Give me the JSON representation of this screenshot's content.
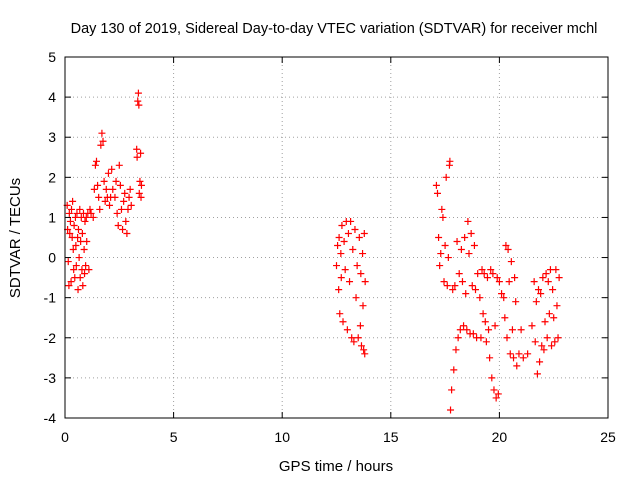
{
  "chart_data": {
    "type": "scatter",
    "title": "Day 130 of 2019, Sidereal Day-to-day VTEC variation (SDTVAR) for receiver mchl",
    "xlabel": "GPS time / hours",
    "ylabel": "SDTVAR / TECUs",
    "xlim": [
      0,
      25
    ],
    "ylim": [
      -4,
      5
    ],
    "xticks": [
      "0",
      "5",
      "10",
      "15",
      "20",
      "25"
    ],
    "yticks": [
      "-4",
      "-3",
      "-2",
      "-1",
      "0",
      "1",
      "2",
      "3",
      "4",
      "5"
    ],
    "grid": true,
    "marker": "+",
    "series": [
      {
        "name": "SDTVAR",
        "color": "#ff0000",
        "points": [
          [
            0.1,
            1.3
          ],
          [
            0.12,
            0.7
          ],
          [
            0.15,
            -0.1
          ],
          [
            0.18,
            -0.7
          ],
          [
            0.2,
            1.1
          ],
          [
            0.22,
            0.6
          ],
          [
            0.25,
            0.9
          ],
          [
            0.28,
            -0.6
          ],
          [
            0.3,
            1.2
          ],
          [
            0.33,
            0.5
          ],
          [
            0.35,
            1.4
          ],
          [
            0.38,
            0.2
          ],
          [
            0.4,
            -0.3
          ],
          [
            0.42,
            0.8
          ],
          [
            0.45,
            -0.5
          ],
          [
            0.48,
            1.0
          ],
          [
            0.5,
            0.3
          ],
          [
            0.52,
            -0.2
          ],
          [
            0.55,
            1.1
          ],
          [
            0.58,
            0.5
          ],
          [
            0.6,
            -0.8
          ],
          [
            0.62,
            0.7
          ],
          [
            0.65,
            0.0
          ],
          [
            0.68,
            1.2
          ],
          [
            0.7,
            -0.5
          ],
          [
            0.72,
            0.4
          ],
          [
            0.75,
            1.0
          ],
          [
            0.78,
            -0.3
          ],
          [
            0.8,
            0.6
          ],
          [
            0.82,
            -0.7
          ],
          [
            0.85,
            1.1
          ],
          [
            0.88,
            0.2
          ],
          [
            0.9,
            -0.4
          ],
          [
            0.92,
            0.9
          ],
          [
            0.95,
            -0.2
          ],
          [
            0.98,
            1.0
          ],
          [
            1.0,
            0.4
          ],
          [
            1.05,
            1.1
          ],
          [
            1.1,
            -0.3
          ],
          [
            1.15,
            1.2
          ],
          [
            1.2,
            1.1
          ],
          [
            1.3,
            1.0
          ],
          [
            1.35,
            1.7
          ],
          [
            1.4,
            2.3
          ],
          [
            1.45,
            2.4
          ],
          [
            1.5,
            1.8
          ],
          [
            1.55,
            1.5
          ],
          [
            1.6,
            1.2
          ],
          [
            1.65,
            2.8
          ],
          [
            1.7,
            3.1
          ],
          [
            1.75,
            2.9
          ],
          [
            1.8,
            1.9
          ],
          [
            1.85,
            1.4
          ],
          [
            1.9,
            1.7
          ],
          [
            1.95,
            1.5
          ],
          [
            2.0,
            2.1
          ],
          [
            2.05,
            1.3
          ],
          [
            2.1,
            1.5
          ],
          [
            2.15,
            2.2
          ],
          [
            2.2,
            1.7
          ],
          [
            2.3,
            1.5
          ],
          [
            2.35,
            1.9
          ],
          [
            2.4,
            1.1
          ],
          [
            2.45,
            0.8
          ],
          [
            2.5,
            2.3
          ],
          [
            2.55,
            1.8
          ],
          [
            2.6,
            1.2
          ],
          [
            2.65,
            0.7
          ],
          [
            2.7,
            1.4
          ],
          [
            2.75,
            1.6
          ],
          [
            2.8,
            0.9
          ],
          [
            2.85,
            0.6
          ],
          [
            2.9,
            1.2
          ],
          [
            2.95,
            1.5
          ],
          [
            3.0,
            1.7
          ],
          [
            3.05,
            1.3
          ],
          [
            3.3,
            2.7
          ],
          [
            3.32,
            2.5
          ],
          [
            3.35,
            3.9
          ],
          [
            3.38,
            4.1
          ],
          [
            3.4,
            3.8
          ],
          [
            3.42,
            1.6
          ],
          [
            3.45,
            1.9
          ],
          [
            3.48,
            2.6
          ],
          [
            3.5,
            1.5
          ],
          [
            3.52,
            1.8
          ],
          [
            12.5,
            -0.2
          ],
          [
            12.55,
            0.3
          ],
          [
            12.6,
            -0.8
          ],
          [
            12.62,
            0.5
          ],
          [
            12.65,
            -1.4
          ],
          [
            12.7,
            0.1
          ],
          [
            12.72,
            -0.5
          ],
          [
            12.75,
            0.8
          ],
          [
            12.8,
            -1.6
          ],
          [
            12.85,
            0.4
          ],
          [
            12.9,
            -0.3
          ],
          [
            12.95,
            0.9
          ],
          [
            13.0,
            -1.8
          ],
          [
            13.05,
            0.6
          ],
          [
            13.1,
            -0.6
          ],
          [
            13.15,
            0.9
          ],
          [
            13.2,
            -2.0
          ],
          [
            13.25,
            0.2
          ],
          [
            13.3,
            -2.1
          ],
          [
            13.35,
            0.7
          ],
          [
            13.4,
            -1.0
          ],
          [
            13.45,
            -0.2
          ],
          [
            13.5,
            -2.0
          ],
          [
            13.55,
            0.5
          ],
          [
            13.6,
            -1.7
          ],
          [
            13.62,
            -0.4
          ],
          [
            13.65,
            -2.2
          ],
          [
            13.7,
            0.1
          ],
          [
            13.72,
            -1.2
          ],
          [
            13.75,
            -2.3
          ],
          [
            13.78,
            0.6
          ],
          [
            13.8,
            -2.4
          ],
          [
            13.82,
            -0.6
          ],
          [
            17.1,
            1.8
          ],
          [
            17.15,
            1.6
          ],
          [
            17.2,
            0.5
          ],
          [
            17.25,
            -0.2
          ],
          [
            17.3,
            0.1
          ],
          [
            17.35,
            1.2
          ],
          [
            17.4,
            1.0
          ],
          [
            17.45,
            -0.6
          ],
          [
            17.5,
            0.3
          ],
          [
            17.55,
            2.0
          ],
          [
            17.6,
            -0.7
          ],
          [
            17.65,
            0.0
          ],
          [
            17.7,
            2.3
          ],
          [
            17.72,
            2.4
          ],
          [
            17.75,
            -3.8
          ],
          [
            17.8,
            -3.3
          ],
          [
            17.85,
            -0.8
          ],
          [
            17.9,
            -2.8
          ],
          [
            17.95,
            -0.7
          ],
          [
            18.0,
            -2.3
          ],
          [
            18.05,
            0.4
          ],
          [
            18.1,
            -2.0
          ],
          [
            18.15,
            -0.4
          ],
          [
            18.2,
            -1.8
          ],
          [
            18.25,
            0.2
          ],
          [
            18.3,
            -0.6
          ],
          [
            18.35,
            -1.7
          ],
          [
            18.4,
            0.5
          ],
          [
            18.45,
            -0.9
          ],
          [
            18.5,
            -1.8
          ],
          [
            18.55,
            0.9
          ],
          [
            18.6,
            0.1
          ],
          [
            18.65,
            -1.9
          ],
          [
            18.7,
            0.6
          ],
          [
            18.75,
            -0.7
          ],
          [
            18.8,
            -1.9
          ],
          [
            18.85,
            0.3
          ],
          [
            18.9,
            -0.8
          ],
          [
            18.95,
            -2.0
          ],
          [
            19.0,
            -0.4
          ],
          [
            19.1,
            -1.0
          ],
          [
            19.15,
            -2.0
          ],
          [
            19.2,
            -0.3
          ],
          [
            19.25,
            -1.4
          ],
          [
            19.3,
            -0.4
          ],
          [
            19.35,
            -1.6
          ],
          [
            19.4,
            -2.1
          ],
          [
            19.45,
            -0.5
          ],
          [
            19.5,
            -1.8
          ],
          [
            19.55,
            -2.5
          ],
          [
            19.6,
            -0.3
          ],
          [
            19.65,
            -3.0
          ],
          [
            19.7,
            -0.4
          ],
          [
            19.75,
            -3.3
          ],
          [
            19.8,
            -1.7
          ],
          [
            19.85,
            -3.5
          ],
          [
            19.9,
            -0.5
          ],
          [
            19.95,
            -3.4
          ],
          [
            20.0,
            -0.6
          ],
          [
            20.1,
            -0.9
          ],
          [
            20.2,
            -1.0
          ],
          [
            20.25,
            -1.5
          ],
          [
            20.3,
            0.3
          ],
          [
            20.35,
            -2.0
          ],
          [
            20.4,
            0.2
          ],
          [
            20.45,
            -0.6
          ],
          [
            20.5,
            -2.4
          ],
          [
            20.55,
            -0.1
          ],
          [
            20.6,
            -1.8
          ],
          [
            20.65,
            -2.5
          ],
          [
            20.7,
            -0.5
          ],
          [
            20.75,
            -1.1
          ],
          [
            20.8,
            -2.7
          ],
          [
            20.9,
            -2.4
          ],
          [
            21.0,
            -1.8
          ],
          [
            21.1,
            -2.5
          ],
          [
            21.3,
            -2.4
          ],
          [
            21.5,
            -1.7
          ],
          [
            21.6,
            -0.6
          ],
          [
            21.65,
            -2.1
          ],
          [
            21.7,
            -1.1
          ],
          [
            21.75,
            -2.9
          ],
          [
            21.8,
            -0.8
          ],
          [
            21.85,
            -2.6
          ],
          [
            21.9,
            -0.9
          ],
          [
            21.95,
            -2.2
          ],
          [
            22.0,
            -0.5
          ],
          [
            22.05,
            -2.3
          ],
          [
            22.1,
            -1.6
          ],
          [
            22.15,
            -0.4
          ],
          [
            22.2,
            -2.0
          ],
          [
            22.25,
            -0.6
          ],
          [
            22.3,
            -1.4
          ],
          [
            22.35,
            -0.3
          ],
          [
            22.4,
            -2.2
          ],
          [
            22.45,
            -0.8
          ],
          [
            22.5,
            -1.5
          ],
          [
            22.55,
            -2.1
          ],
          [
            22.6,
            -0.3
          ],
          [
            22.65,
            -1.2
          ],
          [
            22.7,
            -2.0
          ],
          [
            22.75,
            -0.5
          ]
        ]
      }
    ]
  }
}
